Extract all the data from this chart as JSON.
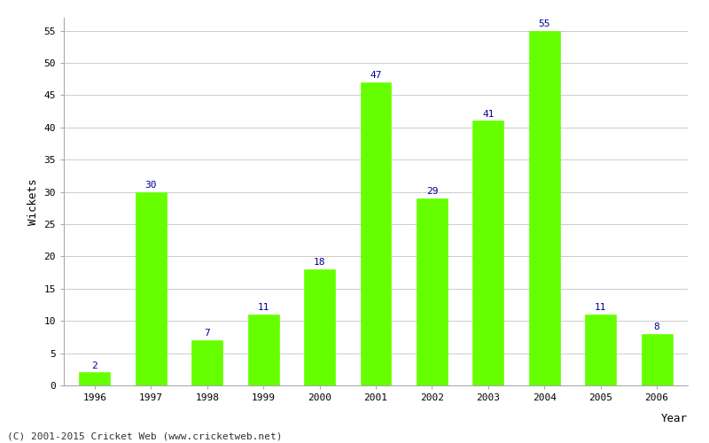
{
  "years": [
    "1996",
    "1997",
    "1998",
    "1999",
    "2000",
    "2001",
    "2002",
    "2003",
    "2004",
    "2005",
    "2006"
  ],
  "wickets": [
    2,
    30,
    7,
    11,
    18,
    47,
    29,
    41,
    55,
    11,
    8
  ],
  "bar_color": "#66ff00",
  "bar_edge_color": "#66ff00",
  "label_color": "#000099",
  "ylabel": "Wickets",
  "xlabel_right": "Year",
  "ylim": [
    0,
    57
  ],
  "yticks": [
    0,
    5,
    10,
    15,
    20,
    25,
    30,
    35,
    40,
    45,
    50,
    55
  ],
  "grid_color": "#cccccc",
  "bg_color": "#ffffff",
  "footer": "(C) 2001-2015 Cricket Web (www.cricketweb.net)",
  "label_fontsize": 8,
  "axis_label_fontsize": 9,
  "tick_fontsize": 8,
  "footer_fontsize": 8
}
